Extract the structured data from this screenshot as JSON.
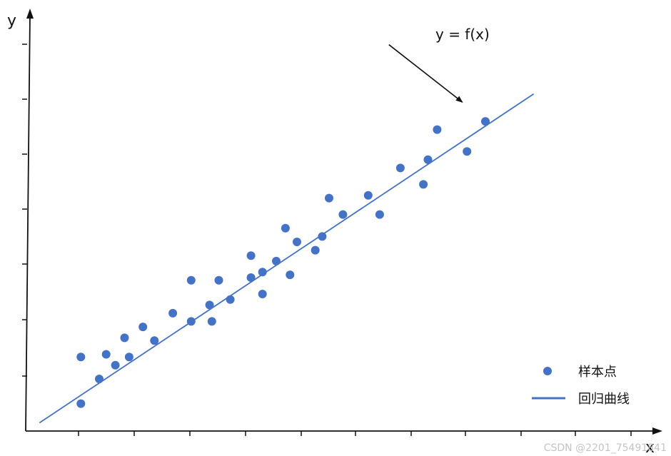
{
  "chart_data": {
    "type": "scatter",
    "xlabel": "x",
    "ylabel": "y",
    "xlim": [
      0,
      24
    ],
    "ylim": [
      0,
      15
    ],
    "grid": false,
    "series": [
      {
        "name": "样本点",
        "kind": "scatter",
        "color": "#4472c4",
        "points": [
          [
            2.4,
            2.7
          ],
          [
            2.4,
            1.0
          ],
          [
            3.2,
            1.9
          ],
          [
            3.5,
            2.8
          ],
          [
            3.9,
            2.4
          ],
          [
            4.3,
            3.4
          ],
          [
            4.5,
            2.7
          ],
          [
            5.1,
            3.8
          ],
          [
            5.6,
            3.3
          ],
          [
            6.4,
            4.3
          ],
          [
            7.2,
            5.5
          ],
          [
            7.2,
            4.0
          ],
          [
            8.0,
            4.6
          ],
          [
            8.1,
            4.0
          ],
          [
            8.4,
            5.5
          ],
          [
            8.9,
            4.8
          ],
          [
            9.8,
            5.6
          ],
          [
            9.8,
            6.4
          ],
          [
            10.3,
            5.8
          ],
          [
            10.3,
            5.0
          ],
          [
            10.9,
            6.2
          ],
          [
            11.3,
            7.4
          ],
          [
            11.5,
            5.7
          ],
          [
            11.8,
            6.9
          ],
          [
            12.6,
            6.6
          ],
          [
            12.9,
            7.1
          ],
          [
            13.2,
            8.5
          ],
          [
            13.8,
            7.9
          ],
          [
            14.9,
            8.6
          ],
          [
            15.4,
            7.9
          ],
          [
            16.3,
            9.6
          ],
          [
            17.3,
            9.0
          ],
          [
            17.5,
            9.9
          ],
          [
            17.9,
            11.0
          ],
          [
            19.2,
            10.2
          ],
          [
            20.0,
            11.3
          ]
        ]
      },
      {
        "name": "回归曲线",
        "kind": "line",
        "color": "#4472c4",
        "points": [
          [
            0.6,
            0.3
          ],
          [
            22.1,
            12.3
          ]
        ]
      }
    ],
    "annotations": [
      {
        "text": "y = f(x)",
        "arrow_from": [
          15.8,
          14.1
        ],
        "arrow_to": [
          19.0,
          12.0
        ]
      }
    ],
    "legend": {
      "position": "bottom-right",
      "entries": [
        {
          "label": "样本点",
          "marker": "dot"
        },
        {
          "label": "回归曲线",
          "marker": "line"
        }
      ]
    }
  },
  "watermark": "CSDN @2201_75491841"
}
